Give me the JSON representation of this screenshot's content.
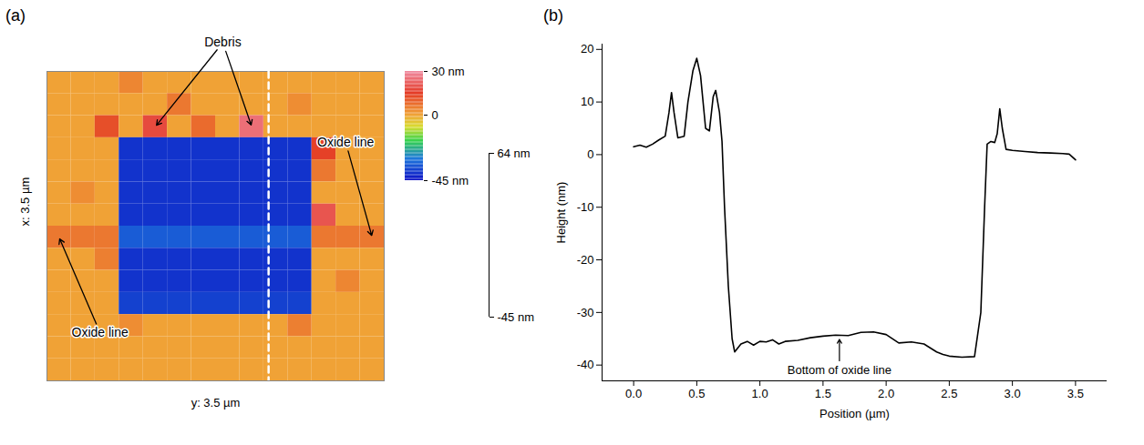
{
  "chart_data": [
    {
      "type": "heatmap",
      "panel": "(a)",
      "xlabel": "y: 3.5 µm",
      "ylabel": "x: 3.5 µm",
      "xlim": [
        0,
        3.5
      ],
      "ylim": [
        0,
        3.5
      ],
      "tick_labels": false,
      "cells": [
        [
          0,
          0,
          0,
          4,
          0,
          0,
          0,
          0,
          0,
          0,
          0,
          0,
          0,
          0
        ],
        [
          0,
          0,
          0,
          0,
          0,
          6,
          0,
          0,
          0,
          0,
          3,
          0,
          0,
          0
        ],
        [
          0,
          0,
          12,
          0,
          18,
          0,
          8,
          0,
          25,
          0,
          0,
          0,
          0,
          0
        ],
        [
          0,
          0,
          0,
          -40,
          -40,
          -40,
          -40,
          -40,
          -40,
          -40,
          -40,
          14,
          0,
          0
        ],
        [
          0,
          0,
          0,
          -40,
          -40,
          -40,
          -40,
          -40,
          -40,
          -40,
          -40,
          6,
          0,
          0
        ],
        [
          0,
          3,
          0,
          -40,
          -40,
          -40,
          -40,
          -40,
          -40,
          -40,
          -40,
          0,
          0,
          0
        ],
        [
          0,
          0,
          0,
          -40,
          -40,
          -40,
          -40,
          -40,
          -40,
          -40,
          -40,
          20,
          0,
          0
        ],
        [
          6,
          6,
          6,
          -34,
          -34,
          -34,
          -34,
          -34,
          -34,
          -34,
          -34,
          6,
          6,
          6
        ],
        [
          0,
          0,
          5,
          -40,
          -40,
          -40,
          -40,
          -40,
          -40,
          -40,
          -40,
          0,
          0,
          0
        ],
        [
          0,
          0,
          0,
          -40,
          -40,
          -40,
          -40,
          -40,
          -40,
          -40,
          -40,
          0,
          4,
          0
        ],
        [
          0,
          0,
          0,
          -38,
          -38,
          -38,
          -38,
          -38,
          -38,
          -38,
          -38,
          0,
          0,
          0
        ],
        [
          0,
          0,
          0,
          3,
          0,
          0,
          0,
          0,
          0,
          0,
          5,
          0,
          0,
          0
        ],
        [
          0,
          0,
          0,
          0,
          0,
          0,
          0,
          0,
          0,
          0,
          0,
          0,
          0,
          0
        ],
        [
          0,
          0,
          0,
          0,
          0,
          0,
          0,
          0,
          0,
          0,
          0,
          0,
          0,
          0
        ]
      ],
      "colorbar": {
        "range": [
          -45,
          30
        ],
        "ticks": [
          {
            "value": 30,
            "label": "30 nm"
          },
          0,
          {
            "value": -45,
            "label": "-45 nm"
          }
        ]
      },
      "zlim": [
        -45,
        64
      ],
      "zticks": [
        {
          "value": 64,
          "label": "64 nm"
        },
        {
          "value": -45,
          "label": "-45 nm"
        }
      ],
      "profile_line": {
        "x": [
          2.3,
          2.3
        ],
        "y": [
          0,
          3.5
        ]
      },
      "annotations": [
        {
          "text": "Debris",
          "targets": [
            [
              1.125,
              0.625
            ],
            [
              2.125,
              0.625
            ]
          ]
        },
        {
          "text": "Oxide line",
          "targets": [
            [
              3.375,
              1.875
            ]
          ]
        },
        {
          "text": "Oxide line",
          "targets": [
            [
              0.125,
              1.875
            ]
          ]
        }
      ]
    },
    {
      "type": "line",
      "panel": "(b)",
      "xlabel": "Position (µm)",
      "ylabel": "Height (nm)",
      "color": "#000000",
      "xlim": [
        -0.25,
        3.75
      ],
      "ylim": [
        -43,
        21
      ],
      "xticks": [
        {
          "value": 0,
          "label": "0.0"
        },
        {
          "value": 0.5,
          "label": "0.5"
        },
        {
          "value": 1,
          "label": "1.0"
        },
        {
          "value": 1.5,
          "label": "1.5"
        },
        {
          "value": 2,
          "label": "2.0"
        },
        {
          "value": 2.5,
          "label": "2.5"
        },
        {
          "value": 3,
          "label": "3.0"
        },
        {
          "value": 3.5,
          "label": "3.5"
        }
      ],
      "yticks": [
        -40,
        -30,
        -20,
        -10,
        0,
        10,
        20
      ],
      "x": [
        0,
        0.05,
        0.1,
        0.15,
        0.2,
        0.25,
        0.28,
        0.3,
        0.32,
        0.35,
        0.4,
        0.43,
        0.47,
        0.5,
        0.53,
        0.57,
        0.6,
        0.63,
        0.65,
        0.68,
        0.7,
        0.72,
        0.75,
        0.78,
        0.8,
        0.85,
        0.9,
        0.95,
        1.0,
        1.05,
        1.1,
        1.15,
        1.2,
        1.3,
        1.4,
        1.5,
        1.6,
        1.7,
        1.8,
        1.9,
        2.0,
        2.1,
        2.2,
        2.3,
        2.4,
        2.45,
        2.5,
        2.6,
        2.7,
        2.75,
        2.78,
        2.8,
        2.83,
        2.86,
        2.88,
        2.9,
        2.92,
        2.95,
        3.0,
        3.1,
        3.2,
        3.3,
        3.4,
        3.45,
        3.5
      ],
      "y": [
        1.5,
        1.8,
        1.4,
        2.0,
        2.8,
        3.5,
        8,
        11.8,
        8,
        3.2,
        3.5,
        10,
        16,
        18.3,
        15,
        5,
        4.5,
        11,
        12.2,
        8,
        2.5,
        -10,
        -25,
        -35,
        -37.5,
        -36,
        -35.5,
        -36.2,
        -35.5,
        -35.6,
        -35.2,
        -36,
        -35.5,
        -35.3,
        -34.8,
        -34.5,
        -34.3,
        -34.4,
        -33.8,
        -33.7,
        -34.2,
        -35.8,
        -35.6,
        -36,
        -37.5,
        -38,
        -38.3,
        -38.5,
        -38.4,
        -30,
        -10,
        2,
        2.5,
        2.3,
        4,
        8.7,
        5,
        1,
        0.8,
        0.6,
        0.4,
        0.3,
        0.2,
        0.1,
        -1
      ],
      "annotations": [
        {
          "text": "Bottom of oxide line",
          "x": 1.63,
          "y": -34.6
        }
      ]
    }
  ]
}
